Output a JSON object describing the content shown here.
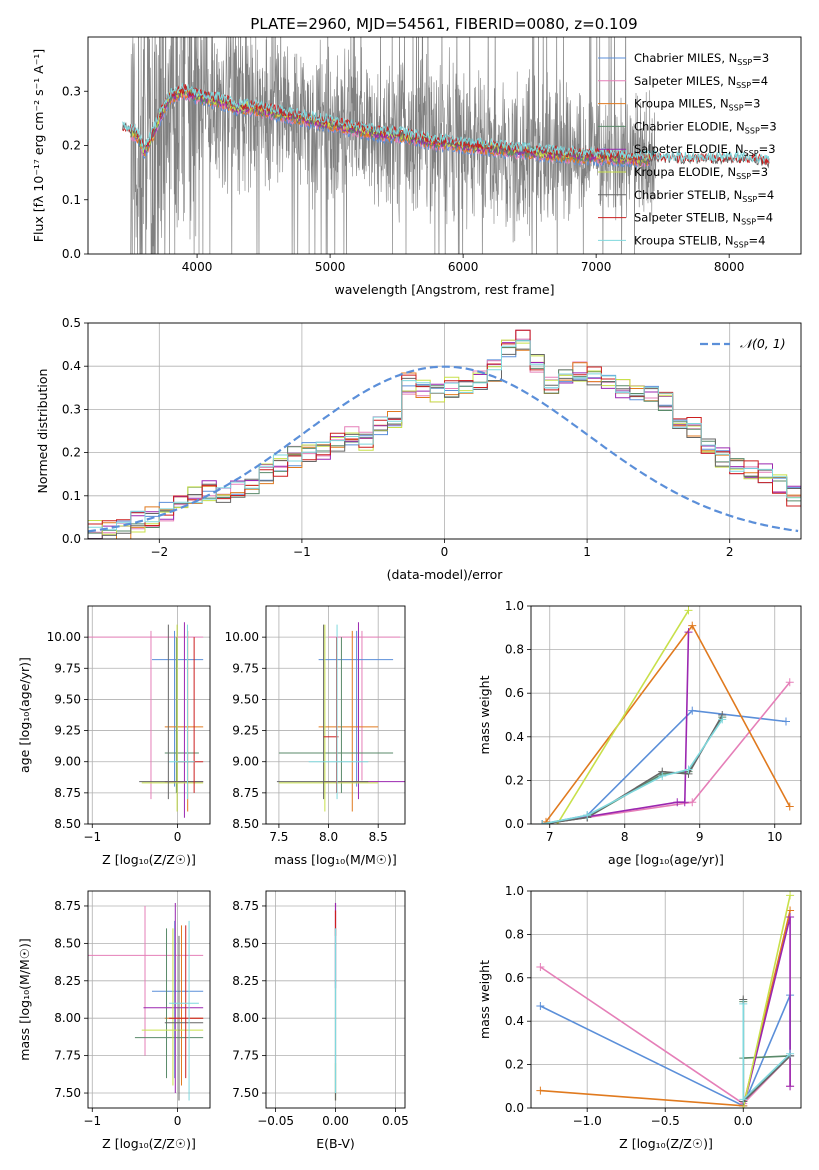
{
  "figure_title": "PLATE=2960, MJD=54561, FIBERID=0080, z=0.109",
  "colors": {
    "Chabrier MILES": "#5b8fd9",
    "Salpeter MILES": "#e57fb8",
    "Kroupa MILES": "#e07a1f",
    "Chabrier ELODIE": "#5a8a6a",
    "Salpeter ELODIE": "#9b27b0",
    "Kroupa ELODIE": "#c8e04a",
    "Chabrier STELIB": "#666666",
    "Salpeter STELIB": "#cc1f1f",
    "Kroupa STELIB": "#7fd8dd",
    "data": "#808080",
    "normal": "#5b8fd9"
  },
  "chart_data": [
    {
      "id": "spectrum",
      "type": "line",
      "title": "PLATE=2960, MJD=54561, FIBERID=0080, z=0.109",
      "xlabel": "wavelength [Angstrom, rest frame]",
      "ylabel": "Flux [f_λ 10^-17 erg cm^-2 s^-1 A^-1]",
      "xlim": [
        3180,
        8540
      ],
      "ylim": [
        0,
        0.4
      ],
      "xticks": [
        4000,
        5000,
        6000,
        7000,
        8000
      ],
      "yticks": [
        0.0,
        0.1,
        0.2,
        0.3
      ],
      "legend": "top-right",
      "series_labels": [
        {
          "name": "Chabrier MILES",
          "nssp": "3"
        },
        {
          "name": "Salpeter MILES",
          "nssp": "4"
        },
        {
          "name": "Kroupa MILES",
          "nssp": "3"
        },
        {
          "name": "Chabrier ELODIE",
          "nssp": "3"
        },
        {
          "name": "Salpeter ELODIE",
          "nssp": "3"
        },
        {
          "name": "Kroupa ELODIE",
          "nssp": "3"
        },
        {
          "name": "Chabrier STELIB",
          "nssp": "4"
        },
        {
          "name": "Salpeter STELIB",
          "nssp": "4"
        },
        {
          "name": "Kroupa STELIB",
          "nssp": "4"
        }
      ],
      "model_continuum": {
        "x": [
          3450,
          3500,
          3550,
          3600,
          3650,
          3700,
          3750,
          3800,
          3900,
          4000,
          4100,
          4200,
          4300,
          4400,
          4500,
          4600,
          4700,
          4800,
          4900,
          5000,
          5100,
          5200,
          5300,
          5400,
          5500,
          5600,
          5700,
          5800,
          5900,
          6000,
          6100,
          6200,
          6300,
          6400,
          6500,
          6600,
          6700,
          6800,
          6900,
          7000,
          7100,
          7200,
          7300,
          7400,
          7600,
          7800,
          8000,
          8200,
          8300
        ],
        "y": [
          0.23,
          0.225,
          0.22,
          0.19,
          0.21,
          0.24,
          0.27,
          0.29,
          0.3,
          0.29,
          0.285,
          0.28,
          0.27,
          0.27,
          0.265,
          0.26,
          0.255,
          0.25,
          0.245,
          0.24,
          0.235,
          0.23,
          0.225,
          0.22,
          0.22,
          0.215,
          0.21,
          0.205,
          0.205,
          0.2,
          0.198,
          0.195,
          0.193,
          0.19,
          0.188,
          0.186,
          0.184,
          0.182,
          0.18,
          0.18,
          0.178,
          0.176,
          0.175,
          0.174,
          0.172,
          0.17,
          0.172,
          0.17,
          0.165
        ]
      },
      "data_range": [
        3500,
        7450
      ]
    },
    {
      "id": "residuals",
      "type": "bar",
      "xlabel": "(data-model)/error",
      "ylabel": "Normed distribution",
      "xlim": [
        -2.5,
        2.5
      ],
      "ylim": [
        0,
        0.5
      ],
      "xticks": [
        -2,
        -1,
        0,
        1,
        2
      ],
      "yticks": [
        0.0,
        0.1,
        0.2,
        0.3,
        0.4,
        0.5
      ],
      "bin_width": 0.1,
      "bins_start": -2.5,
      "values": [
        0.02,
        0.02,
        0.02,
        0.04,
        0.05,
        0.06,
        0.08,
        0.1,
        0.11,
        0.1,
        0.12,
        0.12,
        0.15,
        0.17,
        0.19,
        0.2,
        0.2,
        0.22,
        0.24,
        0.23,
        0.26,
        0.28,
        0.36,
        0.35,
        0.34,
        0.35,
        0.36,
        0.37,
        0.39,
        0.44,
        0.46,
        0.41,
        0.35,
        0.37,
        0.39,
        0.38,
        0.37,
        0.35,
        0.33,
        0.34,
        0.32,
        0.28,
        0.26,
        0.21,
        0.19,
        0.17,
        0.16,
        0.15,
        0.13,
        0.1,
        0.09,
        0.08,
        0.07,
        0.05,
        0.04,
        0.03,
        0.03,
        0.03
      ],
      "overlay": {
        "name": "𝒩(0, 1)",
        "mu": 0,
        "sigma": 1
      },
      "legend": "top-right"
    },
    {
      "id": "age_vs_Z",
      "type": "scatter",
      "xlabel": "Z [log10(Z/Z☉)]",
      "ylabel": "age  [log10(age/yr)]",
      "xlim": [
        -1.05,
        0.38
      ],
      "ylim": [
        8.5,
        10.25
      ],
      "xticks": [
        -1,
        0
      ],
      "yticks": [
        8.5,
        8.75,
        9.0,
        9.25,
        9.5,
        9.75,
        10.0
      ]
    },
    {
      "id": "age_vs_mass",
      "type": "scatter",
      "xlabel": "mass [log10(M/M☉)]",
      "ylabel": "",
      "xlim": [
        7.37,
        8.77
      ],
      "ylim": [
        8.5,
        10.25
      ],
      "xticks": [
        7.5,
        8.0,
        8.5
      ],
      "yticks": [
        8.5,
        8.75,
        9.0,
        9.25,
        9.5,
        9.75,
        10.0
      ]
    },
    {
      "id": "weight_vs_age",
      "type": "line",
      "xlabel": "age  [log10(age/yr)]",
      "ylabel": "mass weight",
      "xlim": [
        6.75,
        10.35
      ],
      "ylim": [
        0,
        1.0
      ],
      "xticks": [
        7,
        8,
        9,
        10
      ],
      "yticks": [
        0.0,
        0.2,
        0.4,
        0.6,
        0.8,
        1.0
      ],
      "series": [
        {
          "name": "Chabrier MILES",
          "x": [
            6.9,
            7.5,
            8.9,
            10.15
          ],
          "y": [
            0.0,
            0.04,
            0.52,
            0.47
          ]
        },
        {
          "name": "Salpeter MILES",
          "x": [
            6.9,
            7.5,
            8.9,
            10.2
          ],
          "y": [
            0.0,
            0.03,
            0.1,
            0.65
          ]
        },
        {
          "name": "Kroupa MILES",
          "x": [
            6.95,
            8.9,
            10.2
          ],
          "y": [
            0.01,
            0.91,
            0.08
          ]
        },
        {
          "name": "Chabrier ELODIE",
          "x": [
            6.9,
            7.5,
            8.5,
            8.85,
            9.3
          ],
          "y": [
            0.0,
            0.03,
            0.23,
            0.24,
            0.49
          ]
        },
        {
          "name": "Salpeter ELODIE",
          "x": [
            6.9,
            8.7,
            8.8,
            8.85
          ],
          "y": [
            0.0,
            0.1,
            0.1,
            0.88
          ]
        },
        {
          "name": "Kroupa ELODIE",
          "x": [
            7.1,
            8.85
          ],
          "y": [
            0.0,
            0.98
          ]
        },
        {
          "name": "Chabrier STELIB",
          "x": [
            6.9,
            7.5,
            8.5,
            8.85,
            9.3
          ],
          "y": [
            0.0,
            0.03,
            0.24,
            0.23,
            0.5
          ]
        },
        {
          "name": "Kroupa STELIB",
          "x": [
            6.9,
            7.5,
            8.5,
            8.85,
            9.3
          ],
          "y": [
            0.0,
            0.04,
            0.22,
            0.25,
            0.48
          ]
        }
      ]
    },
    {
      "id": "mass_vs_Z",
      "type": "scatter",
      "xlabel": "Z [log10(Z/Z☉)]",
      "ylabel": "mass [log10(M/M☉)]",
      "xlim": [
        -1.05,
        0.38
      ],
      "ylim": [
        7.4,
        8.85
      ],
      "xticks": [
        -1,
        0
      ],
      "yticks": [
        7.5,
        7.75,
        8.0,
        8.25,
        8.5,
        8.75
      ]
    },
    {
      "id": "mass_vs_ebv",
      "type": "scatter",
      "xlabel": "E(B-V)",
      "ylabel": "",
      "xlim": [
        -0.058,
        0.058
      ],
      "ylim": [
        7.4,
        8.85
      ],
      "xticks": [
        -0.05,
        0.0,
        0.05
      ],
      "yticks": [
        7.5,
        7.75,
        8.0,
        8.25,
        8.5,
        8.75
      ]
    },
    {
      "id": "weight_vs_Z",
      "type": "line",
      "xlabel": "Z [log10(Z/Z☉)]",
      "ylabel": "mass weight",
      "xlim": [
        -1.36,
        0.37
      ],
      "ylim": [
        0,
        1.0
      ],
      "xticks": [
        -1.0,
        -0.5,
        0.0
      ],
      "yticks": [
        0.0,
        0.2,
        0.4,
        0.6,
        0.8,
        1.0
      ],
      "series": [
        {
          "name": "Chabrier MILES",
          "x": [
            -1.3,
            0.0,
            0.3,
            0.3
          ],
          "y": [
            0.47,
            0.01,
            0.52,
            0.24
          ]
        },
        {
          "name": "Salpeter MILES",
          "x": [
            -1.3,
            0.0,
            0.3,
            0.3
          ],
          "y": [
            0.65,
            0.02,
            0.24,
            0.1
          ]
        },
        {
          "name": "Kroupa MILES",
          "x": [
            -1.3,
            0.0,
            0.3
          ],
          "y": [
            0.08,
            0.01,
            0.91
          ]
        },
        {
          "name": "Chabrier ELODIE",
          "x": [
            0.0,
            0.0,
            0.3,
            0.0
          ],
          "y": [
            0.49,
            0.03,
            0.24,
            0.23
          ]
        },
        {
          "name": "Salpeter ELODIE",
          "x": [
            0.0,
            0.3,
            0.3
          ],
          "y": [
            0.0,
            0.88,
            0.1
          ]
        },
        {
          "name": "Kroupa ELODIE",
          "x": [
            0.0,
            0.3
          ],
          "y": [
            0.0,
            0.98
          ]
        },
        {
          "name": "Chabrier STELIB",
          "x": [
            0.0,
            0.0,
            0.3
          ],
          "y": [
            0.5,
            0.03,
            0.24
          ]
        },
        {
          "name": "Kroupa STELIB",
          "x": [
            0.0,
            0.0,
            0.3
          ],
          "y": [
            0.48,
            0.04,
            0.25
          ]
        }
      ]
    }
  ]
}
